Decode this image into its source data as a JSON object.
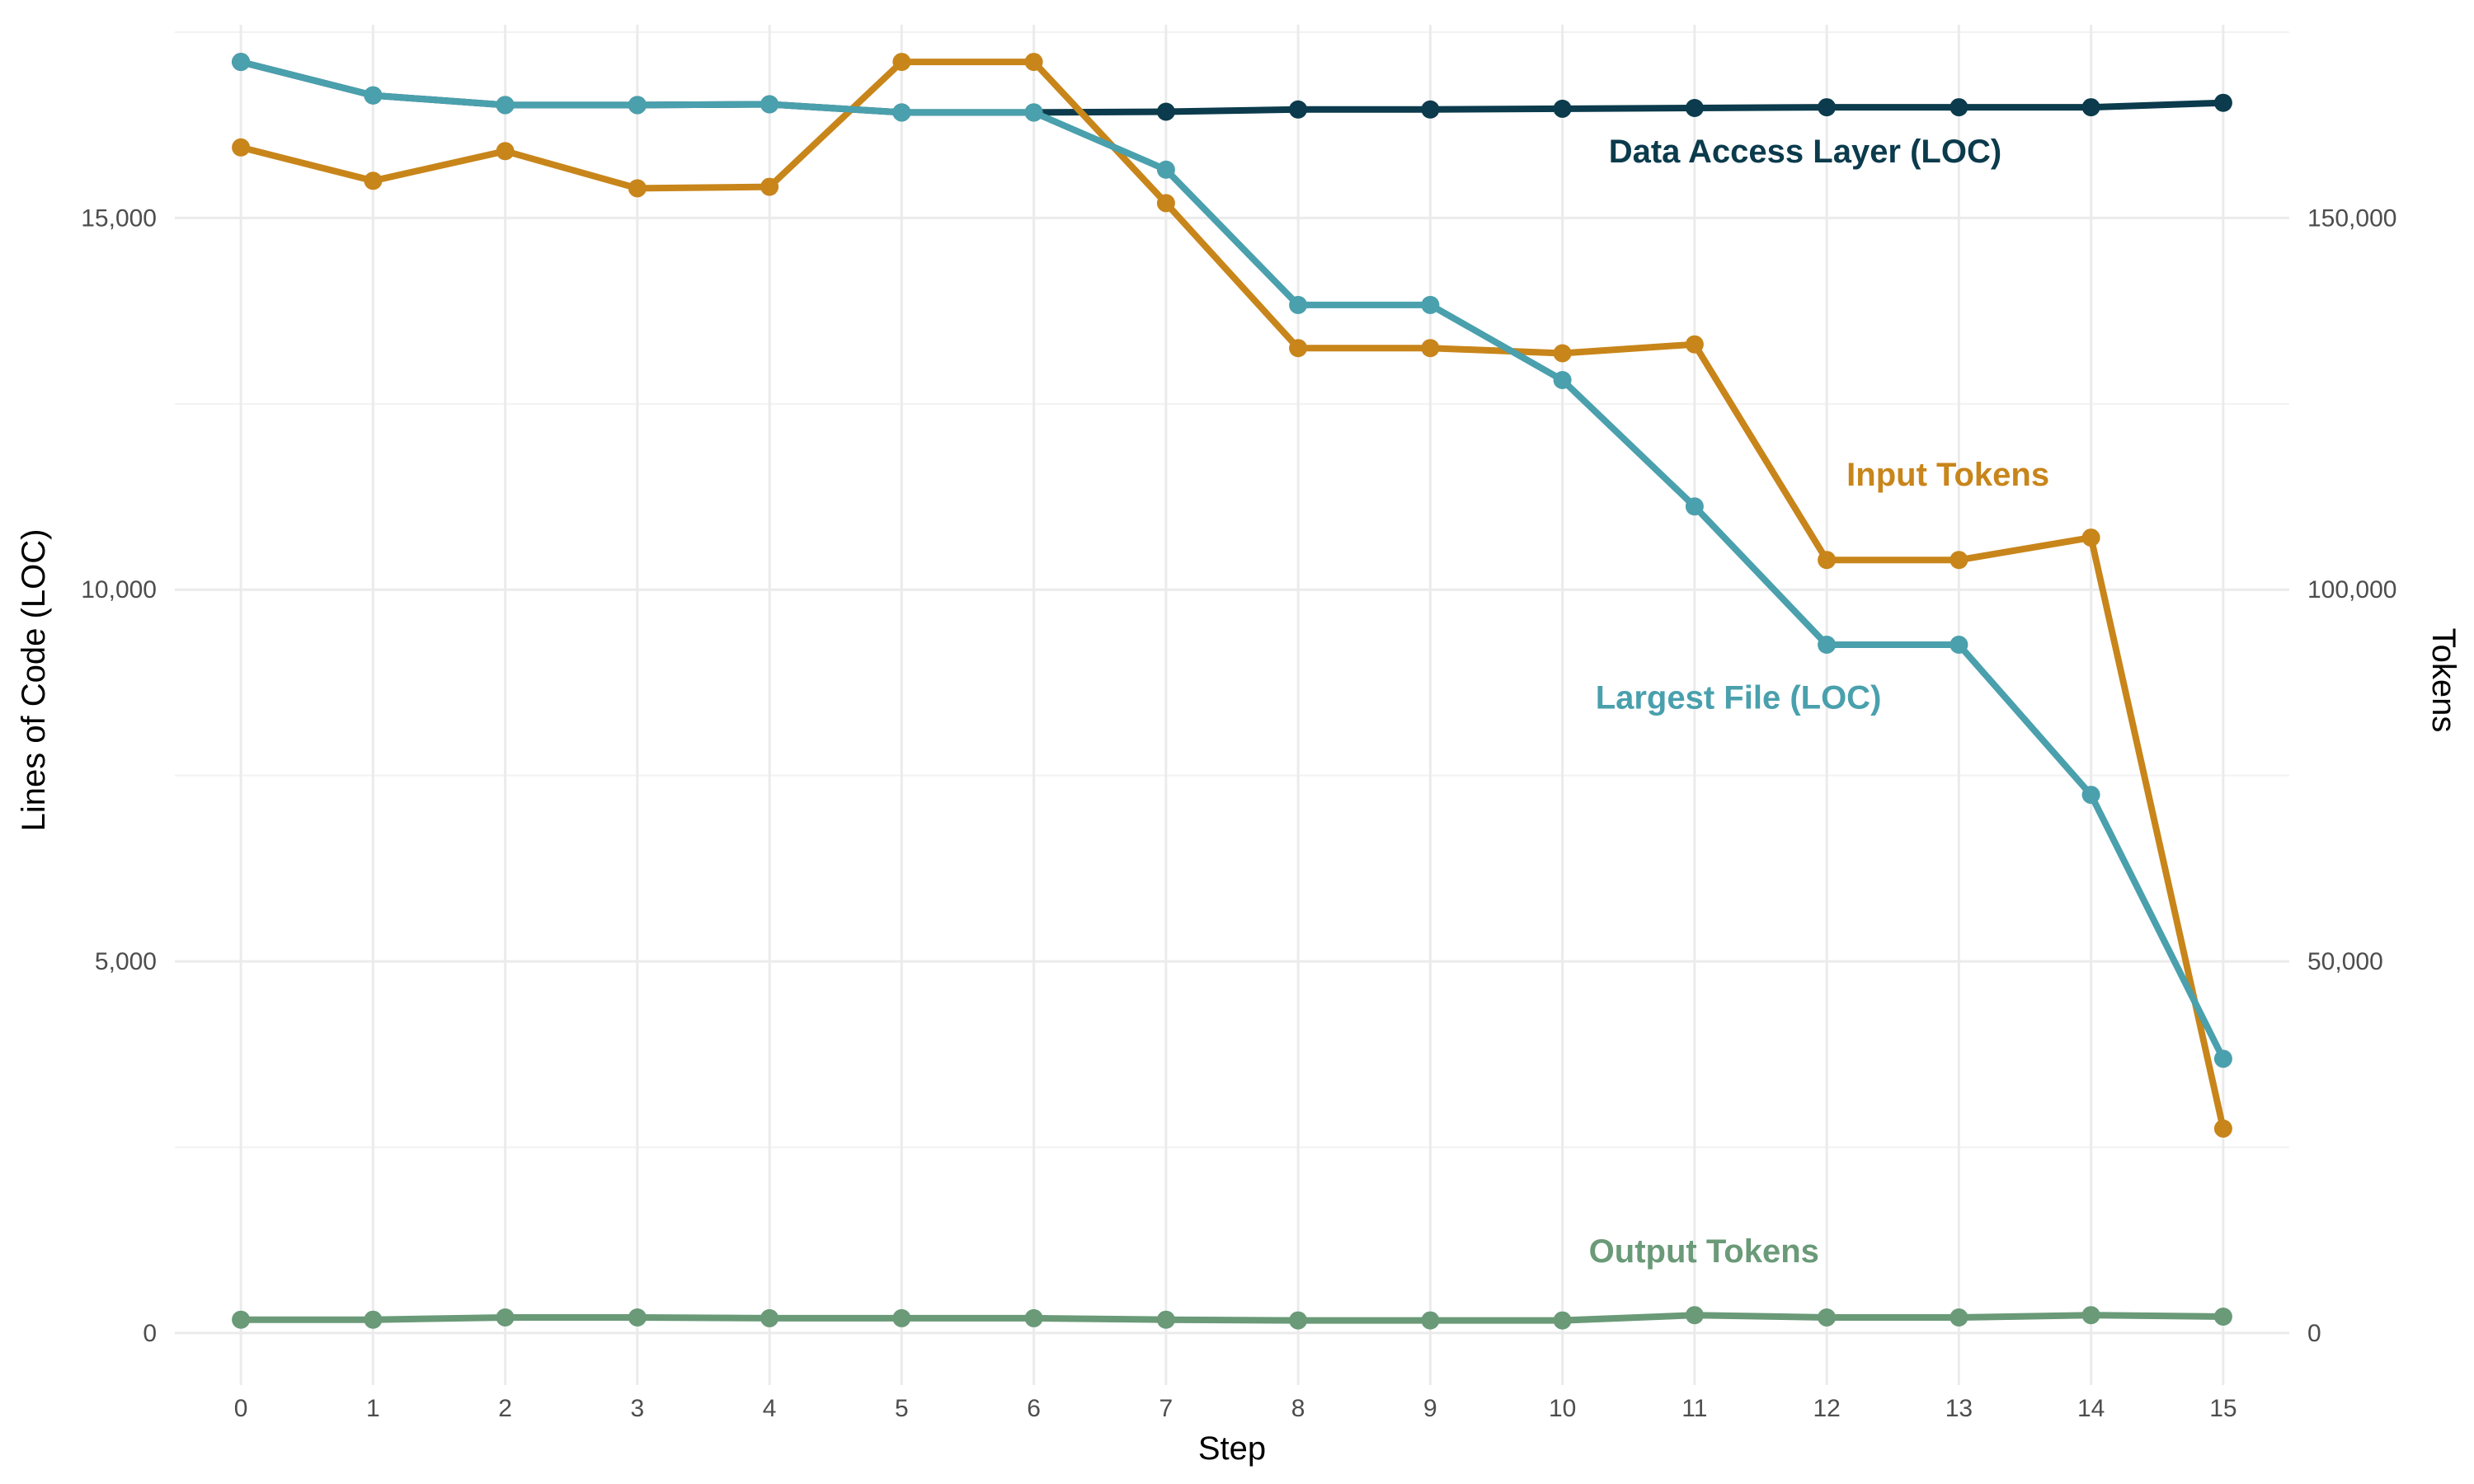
{
  "chart_data": {
    "type": "line",
    "x": [
      0,
      1,
      2,
      3,
      4,
      5,
      6,
      7,
      8,
      9,
      10,
      11,
      12,
      13,
      14,
      15
    ],
    "xlabel": "Step",
    "ylabel_left": "Lines of Code (LOC)",
    "ylabel_right": "Tokens",
    "ylim_left": [
      -700,
      17600
    ],
    "ylim_right": [
      -7000,
      176000
    ],
    "xlim": [
      -0.5,
      15.5
    ],
    "yticks_left": [
      {
        "value": 0,
        "label": "0"
      },
      {
        "value": 5000,
        "label": "5,000"
      },
      {
        "value": 10000,
        "label": "10,000"
      },
      {
        "value": 15000,
        "label": "15,000"
      }
    ],
    "yticks_right": [
      {
        "value": 0,
        "label": "0"
      },
      {
        "value": 50000,
        "label": "50,000"
      },
      {
        "value": 100000,
        "label": "100,000"
      },
      {
        "value": 150000,
        "label": "150,000"
      }
    ],
    "xticks": [
      "0",
      "1",
      "2",
      "3",
      "4",
      "5",
      "6",
      "7",
      "8",
      "9",
      "10",
      "11",
      "12",
      "13",
      "14",
      "15"
    ],
    "grid": true,
    "series": [
      {
        "name": "Data Access Layer (LOC)",
        "axis": "left",
        "color": "#0b3b4c",
        "values": [
          17100,
          16650,
          16520,
          16520,
          16530,
          16420,
          16420,
          16430,
          16460,
          16460,
          16470,
          16480,
          16490,
          16490,
          16490,
          16550
        ]
      },
      {
        "name": "Input Tokens",
        "axis": "right",
        "color": "#c8851a",
        "values": [
          159500,
          155000,
          159000,
          154000,
          154200,
          171000,
          171000,
          152000,
          132500,
          132500,
          131800,
          133000,
          104000,
          104000,
          107000,
          27500
        ]
      },
      {
        "name": "Largest File (LOC)",
        "axis": "left",
        "color": "#4aa0ad",
        "values": [
          17100,
          16650,
          16520,
          16520,
          16530,
          16420,
          16420,
          15650,
          13830,
          13830,
          12820,
          11120,
          9260,
          9260,
          7240,
          3690
        ]
      },
      {
        "name": "Output Tokens",
        "axis": "right",
        "color": "#6a9a78",
        "values": [
          1800,
          1800,
          2100,
          2100,
          2000,
          2000,
          2000,
          1800,
          1700,
          1700,
          1700,
          2400,
          2100,
          2100,
          2400,
          2200
        ]
      }
    ],
    "annotations": [
      {
        "text": "Data Access Layer (LOC)",
        "series": 0,
        "x": 10.35,
        "y_left": 15750
      },
      {
        "text": "Input Tokens",
        "series": 1,
        "x": 12.15,
        "y_left": 11400
      },
      {
        "text": "Largest File (LOC)",
        "series": 2,
        "x": 10.25,
        "y_left": 8400
      },
      {
        "text": "Output Tokens",
        "series": 3,
        "x": 10.2,
        "y_left": 950
      }
    ]
  }
}
